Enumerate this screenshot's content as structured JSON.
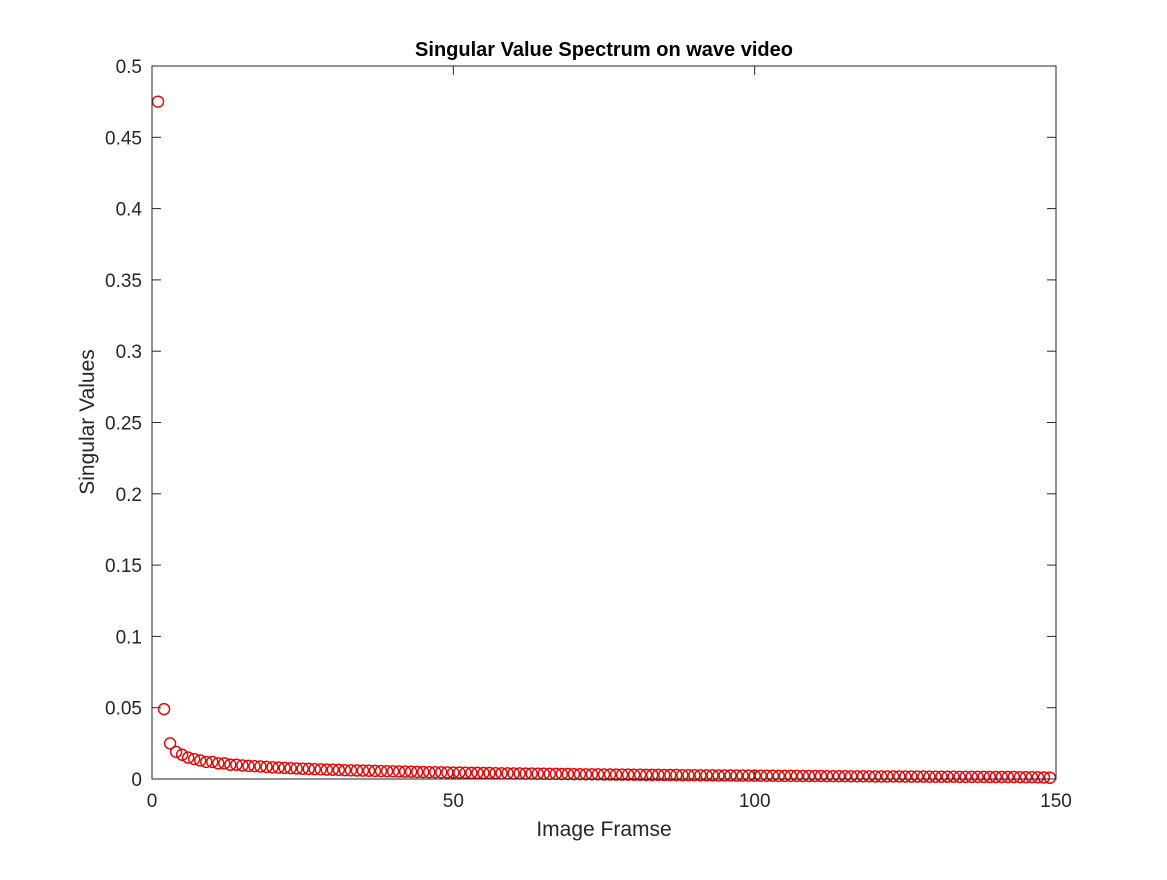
{
  "chart_data": {
    "type": "scatter",
    "title": "Singular Value Spectrum on wave video",
    "xlabel": "Image Framse",
    "ylabel": "Singular Values",
    "xlim": [
      0,
      150
    ],
    "ylim": [
      0,
      0.5
    ],
    "xticks": [
      0,
      50,
      100,
      150
    ],
    "yticks": [
      0,
      0.05,
      0.1,
      0.15,
      0.2,
      0.25,
      0.3,
      0.35,
      0.4,
      0.45,
      0.5
    ],
    "ytick_labels": [
      "0",
      "0.05",
      "0.1",
      "0.15",
      "0.2",
      "0.25",
      "0.3",
      "0.35",
      "0.4",
      "0.45",
      "0.5"
    ],
    "xtick_labels": [
      "0",
      "50",
      "100",
      "150"
    ],
    "marker": "circle",
    "marker_color": "#e60000",
    "grid": false,
    "box": true,
    "series": [
      {
        "x": [
          1,
          2,
          3,
          4,
          5,
          6,
          7,
          8,
          9,
          10,
          11,
          12,
          13,
          14,
          15,
          16,
          17,
          18,
          19,
          20,
          21,
          22,
          23,
          24,
          25,
          26,
          27,
          28,
          29,
          30,
          31,
          32,
          33,
          34,
          35,
          36,
          37,
          38,
          39,
          40,
          41,
          42,
          43,
          44,
          45,
          46,
          47,
          48,
          49,
          50,
          51,
          52,
          53,
          54,
          55,
          56,
          57,
          58,
          59,
          60,
          61,
          62,
          63,
          64,
          65,
          66,
          67,
          68,
          69,
          70,
          71,
          72,
          73,
          74,
          75,
          76,
          77,
          78,
          79,
          80,
          81,
          82,
          83,
          84,
          85,
          86,
          87,
          88,
          89,
          90,
          91,
          92,
          93,
          94,
          95,
          96,
          97,
          98,
          99,
          100,
          101,
          102,
          103,
          104,
          105,
          106,
          107,
          108,
          109,
          110,
          111,
          112,
          113,
          114,
          115,
          116,
          117,
          118,
          119,
          120,
          121,
          122,
          123,
          124,
          125,
          126,
          127,
          128,
          129,
          130,
          131,
          132,
          133,
          134,
          135,
          136,
          137,
          138,
          139,
          140,
          141,
          142,
          143,
          144,
          145,
          146,
          147,
          148,
          149
        ],
        "values": [
          0.475,
          0.049,
          0.025,
          0.019,
          0.017,
          0.015,
          0.014,
          0.013,
          0.012,
          0.012,
          0.011,
          0.011,
          0.01,
          0.01,
          0.0095,
          0.0092,
          0.009,
          0.0088,
          0.0085,
          0.0082,
          0.008,
          0.0078,
          0.0076,
          0.0074,
          0.0072,
          0.0071,
          0.0069,
          0.0068,
          0.0066,
          0.0065,
          0.0064,
          0.0062,
          0.0061,
          0.006,
          0.0059,
          0.0058,
          0.0057,
          0.0056,
          0.0055,
          0.0054,
          0.0053,
          0.0052,
          0.0051,
          0.005,
          0.0049,
          0.0048,
          0.0048,
          0.0047,
          0.0046,
          0.0045,
          0.0045,
          0.0044,
          0.0043,
          0.0043,
          0.0042,
          0.0042,
          0.0041,
          0.004,
          0.004,
          0.0039,
          0.0039,
          0.0038,
          0.0038,
          0.0037,
          0.0037,
          0.0036,
          0.0036,
          0.0035,
          0.0035,
          0.0034,
          0.0034,
          0.0033,
          0.0033,
          0.0033,
          0.0032,
          0.0032,
          0.0031,
          0.0031,
          0.0031,
          0.003,
          0.003,
          0.0029,
          0.0029,
          0.0029,
          0.0028,
          0.0028,
          0.0028,
          0.0027,
          0.0027,
          0.0027,
          0.0026,
          0.0026,
          0.0026,
          0.0025,
          0.0025,
          0.0025,
          0.0024,
          0.0024,
          0.0024,
          0.0024,
          0.0023,
          0.0023,
          0.0023,
          0.0022,
          0.0022,
          0.0022,
          0.0022,
          0.0021,
          0.0021,
          0.0021,
          0.0021,
          0.002,
          0.002,
          0.002,
          0.002,
          0.0019,
          0.0019,
          0.0019,
          0.0019,
          0.0018,
          0.0018,
          0.0018,
          0.0018,
          0.0018,
          0.0017,
          0.0017,
          0.0017,
          0.0017,
          0.0016,
          0.0016,
          0.0016,
          0.0016,
          0.0016,
          0.0015,
          0.0015,
          0.0015,
          0.0015,
          0.0015,
          0.0014,
          0.0014,
          0.0014,
          0.0014,
          0.0014,
          0.0013,
          0.0013,
          0.0013,
          0.0012,
          0.0011,
          0.0009
        ]
      }
    ]
  }
}
